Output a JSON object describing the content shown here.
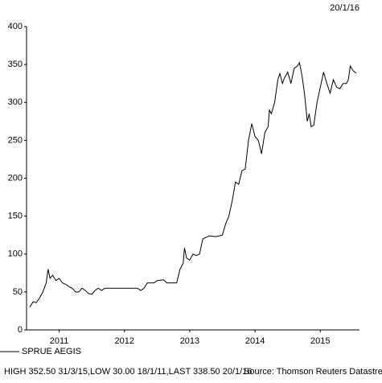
{
  "chart_data": {
    "type": "line",
    "date_label": "20/1/16",
    "summary": "HIGH 352.50 31/3/15,LOW 30.00 18/1/11,LAST 338.50 20/1/16",
    "source": "Source: Thomson Reuters Datastream",
    "x": [
      2011.05,
      2011.1,
      2011.15,
      2011.2,
      2011.25,
      2011.3,
      2011.33,
      2011.36,
      2011.4,
      2011.45,
      2011.5,
      2011.55,
      2011.6,
      2011.65,
      2011.7,
      2011.75,
      2011.8,
      2011.85,
      2011.9,
      2011.95,
      2012.0,
      2012.05,
      2012.1,
      2012.15,
      2012.2,
      2012.3,
      2012.5,
      2012.7,
      2012.75,
      2012.8,
      2012.85,
      2012.95,
      2013.0,
      2013.1,
      2013.15,
      2013.3,
      2013.35,
      2013.4,
      2013.42,
      2013.45,
      2013.5,
      2013.55,
      2013.6,
      2013.65,
      2013.7,
      2013.8,
      2013.9,
      2014.0,
      2014.05,
      2014.1,
      2014.15,
      2014.2,
      2014.25,
      2014.3,
      2014.35,
      2014.4,
      2014.45,
      2014.5,
      2014.55,
      2014.6,
      2014.65,
      2014.7,
      2014.72,
      2014.75,
      2014.8,
      2014.85,
      2014.88,
      2014.92,
      2014.95,
      2015.0,
      2015.05,
      2015.1,
      2015.15,
      2015.18,
      2015.22,
      2015.26,
      2015.3,
      2015.33,
      2015.36,
      2015.4,
      2015.45,
      2015.5,
      2015.55,
      2015.6,
      2015.65,
      2015.7,
      2015.75,
      2015.8,
      2015.85,
      2015.9,
      2015.93,
      2015.96,
      2016.0,
      2016.05
    ],
    "series": [
      {
        "name": "SPRUE AEGIS",
        "color": "#000000",
        "values": [
          30,
          37,
          36,
          42,
          50,
          62,
          80,
          68,
          72,
          65,
          68,
          62,
          60,
          57,
          55,
          50,
          50,
          55,
          52,
          48,
          47,
          52,
          55,
          52,
          55,
          55,
          55,
          55,
          52,
          55,
          62,
          62,
          65,
          66,
          62,
          62,
          80,
          88,
          108,
          95,
          92,
          100,
          98,
          100,
          120,
          124,
          123,
          125,
          140,
          150,
          170,
          195,
          192,
          210,
          212,
          250,
          272,
          255,
          250,
          232,
          260,
          268,
          290,
          285,
          300,
          330,
          338,
          325,
          332,
          340,
          325,
          345,
          348,
          352.5,
          335,
          310,
          275,
          285,
          268,
          270,
          300,
          320,
          340,
          325,
          312,
          330,
          320,
          318,
          325,
          325,
          330,
          348,
          342,
          338.5
        ]
      }
    ],
    "xlim": [
      2011,
      2016.1
    ],
    "xticks": [
      {
        "value": 2011.5,
        "label": "2011"
      },
      {
        "value": 2012.5,
        "label": "2012"
      },
      {
        "value": 2013.5,
        "label": "2013"
      },
      {
        "value": 2014.5,
        "label": "2014"
      },
      {
        "value": 2015.5,
        "label": "2015"
      }
    ],
    "ylim": [
      0,
      400
    ],
    "yticks": [
      0,
      50,
      100,
      150,
      200,
      250,
      300,
      350,
      400
    ]
  }
}
